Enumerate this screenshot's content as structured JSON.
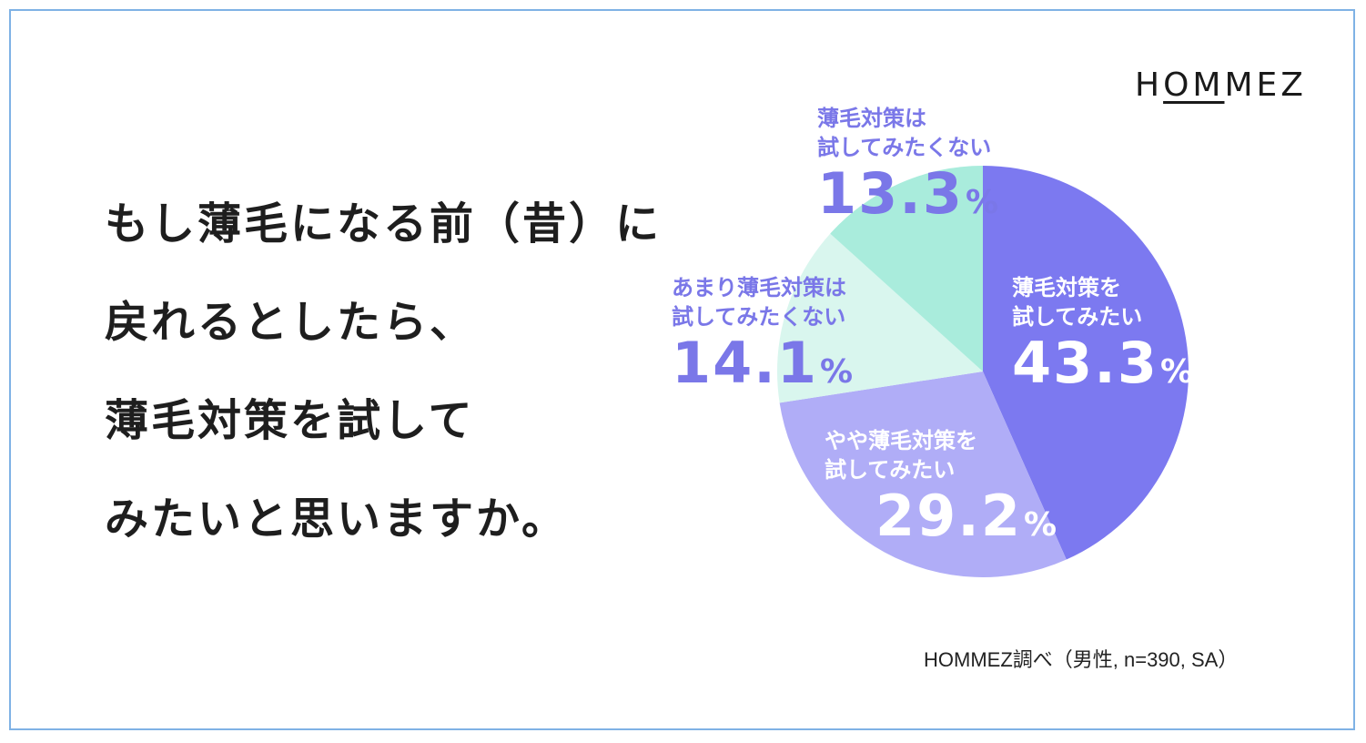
{
  "logo": "HOMMEZ",
  "question": [
    "もし薄毛になる前（昔）に",
    "戻れるとしたら、",
    "薄毛対策を試して",
    "みたいと思いますか。"
  ],
  "source": "HOMMEZ調べ（男性, n=390, SA）",
  "chart_data": {
    "type": "pie",
    "slices": [
      {
        "label_lines": [
          "薄毛対策を",
          "試してみたい"
        ],
        "value": 43.3,
        "value_text": "43.3",
        "unit": "%",
        "color": "#7c79f0",
        "text_color": "#ffffff"
      },
      {
        "label_lines": [
          "やや薄毛対策を",
          "試してみたい"
        ],
        "value": 29.2,
        "value_text": "29.2",
        "unit": "%",
        "color": "#b0adf7",
        "text_color": "#ffffff"
      },
      {
        "label_lines": [
          "あまり薄毛対策は",
          "試してみたくない"
        ],
        "value": 14.1,
        "value_text": "14.1",
        "unit": "%",
        "color": "#d9f6ee",
        "text_color": "#7a77e8"
      },
      {
        "label_lines": [
          "薄毛対策は",
          "試してみたくない"
        ],
        "value": 13.3,
        "value_text": "13.3",
        "unit": "%",
        "color": "#a9ecdc",
        "text_color": "#7a77e8"
      }
    ],
    "start": "12 o'clock",
    "direction": "clockwise"
  }
}
